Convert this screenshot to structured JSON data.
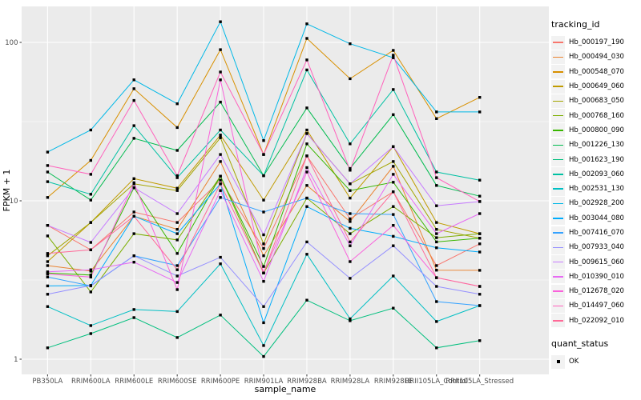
{
  "panel": {
    "bg_color": "#EBEBEB",
    "grid_color": "#FFFFFF",
    "key_bg_color": "#F2F2F2",
    "axis_text_color": "#4D4D4D",
    "tick_color": "#333333",
    "marker_color": "#000000"
  },
  "legend": {
    "tracking_title": "tracking_id",
    "quant_title": "quant_status",
    "quant_items": [
      {
        "label": "OK",
        "marker": "black-square"
      }
    ]
  },
  "chart_data": {
    "type": "line",
    "title": "",
    "xlabel": "sample_name",
    "ylabel": "FPKM + 1",
    "y_scale": "log10",
    "y_ticks": [
      {
        "label": "1",
        "value": 1
      },
      {
        "label": "10",
        "value": 10
      },
      {
        "label": "100",
        "value": 100
      }
    ],
    "y_minor_ticks": [
      3.1623,
      31.623
    ],
    "ylim": [
      0.8,
      170
    ],
    "grid": true,
    "legend_position": "right",
    "marker": "black-square",
    "categories": [
      "PB350LA",
      "RRIM600LA",
      "RRIM600LE",
      "RRIM600SE",
      "RRIM600PE",
      "RRIM901LA",
      "RRIM928BA",
      "RRIM928LA",
      "RRIM928LE",
      "RRII105LA_Control",
      "RRII105LA_Stressed"
    ],
    "series": [
      {
        "name": "Hb_000197_190",
        "color": "#F8766D",
        "values": [
          7.0,
          4.9,
          8.5,
          7.3,
          13.5,
          5.0,
          19.2,
          7.7,
          11.4,
          3.9,
          5.35
        ]
      },
      {
        "name": "Hb_000494_030",
        "color": "#EA8331",
        "values": [
          3.9,
          3.6,
          8.0,
          6.6,
          17.7,
          4.5,
          12.5,
          7.4,
          16.5,
          3.65,
          3.64
        ]
      },
      {
        "name": "Hb_000548_070",
        "color": "#D89000",
        "values": [
          10.5,
          18.0,
          51.0,
          29.0,
          90.0,
          19.6,
          106.0,
          59.0,
          89.0,
          33.0,
          45.0
        ]
      },
      {
        "name": "Hb_000649_060",
        "color": "#C09B00",
        "values": [
          4.13,
          7.3,
          13.8,
          12.0,
          26.0,
          10.1,
          28.0,
          10.4,
          22.0,
          7.3,
          6.2
        ]
      },
      {
        "name": "Hb_000683_050",
        "color": "#A3A500",
        "values": [
          4.5,
          7.3,
          12.8,
          11.6,
          25.0,
          5.35,
          26.6,
          12.8,
          17.7,
          6.6,
          5.8
        ]
      },
      {
        "name": "Hb_000768_160",
        "color": "#7CAE00",
        "values": [
          6.0,
          2.66,
          6.2,
          5.66,
          14.3,
          3.5,
          10.4,
          6.2,
          9.2,
          5.85,
          6.2
        ]
      },
      {
        "name": "Hb_000800_090",
        "color": "#39B600",
        "values": [
          3.5,
          3.4,
          12.1,
          4.65,
          14.3,
          3.85,
          22.9,
          11.6,
          13.1,
          5.5,
          5.8
        ]
      },
      {
        "name": "Hb_001226_130",
        "color": "#00BB4E",
        "values": [
          15.2,
          10.1,
          24.8,
          20.8,
          42.0,
          14.4,
          38.6,
          16.0,
          35.0,
          12.5,
          10.7
        ]
      },
      {
        "name": "Hb_001623_190",
        "color": "#00BF7D",
        "values": [
          1.18,
          1.45,
          1.83,
          1.37,
          1.9,
          1.04,
          2.36,
          1.75,
          2.1,
          1.18,
          1.31
        ]
      },
      {
        "name": "Hb_002093_060",
        "color": "#00C1A3",
        "values": [
          13.2,
          11.0,
          29.8,
          14.0,
          28.0,
          14.4,
          67.0,
          22.9,
          50.4,
          15.2,
          13.5
        ]
      },
      {
        "name": "Hb_002531_130",
        "color": "#00BFC4",
        "values": [
          2.15,
          1.63,
          2.06,
          2.0,
          4.0,
          1.22,
          4.6,
          1.8,
          3.35,
          1.73,
          2.18
        ]
      },
      {
        "name": "Hb_002928_200",
        "color": "#00B8E7",
        "values": [
          20.3,
          28.0,
          58.0,
          41.0,
          135.0,
          24.0,
          131.0,
          98.0,
          80.0,
          36.4,
          36.4
        ]
      },
      {
        "name": "Hb_003044_080",
        "color": "#00ACFC",
        "values": [
          2.9,
          2.92,
          8.0,
          6.2,
          12.8,
          1.7,
          9.2,
          6.7,
          5.97,
          5.05,
          4.75
        ]
      },
      {
        "name": "Hb_007416_070",
        "color": "#35A2FF",
        "values": [
          3.3,
          2.9,
          4.5,
          3.9,
          10.5,
          8.5,
          10.4,
          8.3,
          8.2,
          2.31,
          2.18
        ]
      },
      {
        "name": "Hb_007933_040",
        "color": "#9590FF",
        "values": [
          2.57,
          2.92,
          4.5,
          3.35,
          4.4,
          2.15,
          5.5,
          3.24,
          5.2,
          2.88,
          2.57
        ]
      },
      {
        "name": "Hb_009615_060",
        "color": "#C77CFF",
        "values": [
          7.0,
          5.46,
          12.1,
          8.3,
          19.6,
          6.1,
          26.6,
          12.8,
          22.0,
          9.3,
          9.9
        ]
      },
      {
        "name": "Hb_010390_010",
        "color": "#E76BF3",
        "values": [
          3.56,
          3.67,
          4.1,
          3.05,
          11.6,
          3.1,
          16.2,
          5.2,
          14.7,
          6.2,
          8.3
        ]
      },
      {
        "name": "Hb_012678_020",
        "color": "#FA62DB",
        "values": [
          3.45,
          3.3,
          13.0,
          2.75,
          58.0,
          3.5,
          15.2,
          4.13,
          7.0,
          3.27,
          2.88
        ]
      },
      {
        "name": "Hb_014497_060",
        "color": "#FF62BC",
        "values": [
          16.7,
          14.7,
          43.0,
          14.4,
          65.0,
          19.6,
          77.5,
          15.6,
          83.0,
          14.0,
          9.9
        ]
      },
      {
        "name": "Hb_022092_010",
        "color": "#FF6A98",
        "values": [
          4.65,
          4.9,
          8.0,
          3.67,
          12.8,
          3.5,
          19.2,
          5.5,
          11.4,
          3.27,
          2.88
        ]
      }
    ]
  }
}
